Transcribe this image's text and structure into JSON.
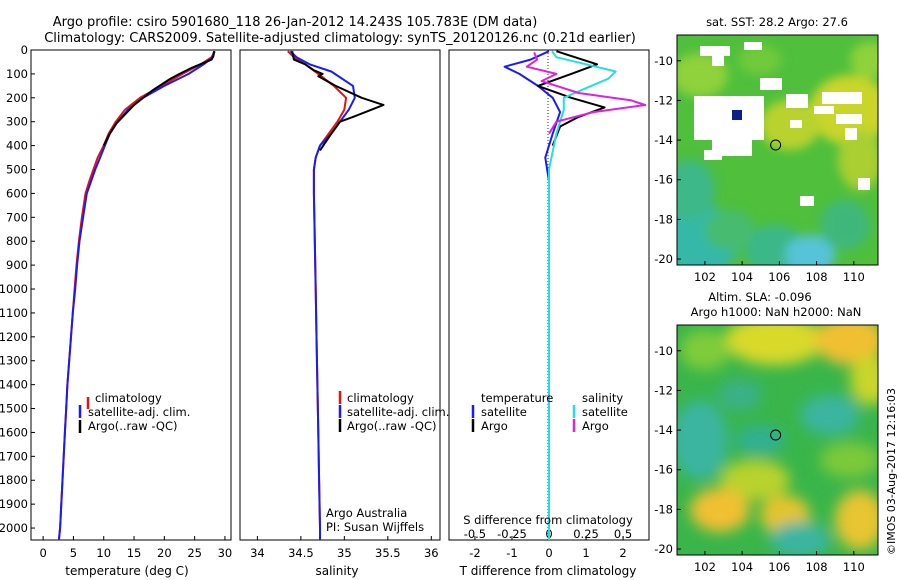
{
  "header": {
    "line1": "Argo profile: csiro 5901680_118 26-Jan-2012 14.243S 105.783E (DM data)",
    "line2": "Climatology: CARS2009. Satellite-adjusted climatology: synTS_20120126.nc (0.21d earlier)"
  },
  "colors": {
    "climatology": "#e81010",
    "satellite": "#1a1aff",
    "argo": "#000000",
    "salinity_satellite": "#22e0e0",
    "salinity_argo": "#e020e0"
  },
  "chart_data": [
    {
      "id": "temperature",
      "type": "line",
      "xlabel": "temperature (deg C)",
      "ylabel": "",
      "xlim": [
        -2,
        31
      ],
      "ylim": [
        2050,
        0
      ],
      "xticks": [
        0,
        5,
        10,
        15,
        20,
        25,
        30
      ],
      "yticks": [
        0,
        100,
        200,
        300,
        400,
        500,
        600,
        700,
        800,
        900,
        1000,
        1100,
        1200,
        1300,
        1400,
        1500,
        1600,
        1700,
        1800,
        1900,
        2000
      ],
      "legend": [
        "climatology",
        "satellite-adj. clim.",
        "Argo(..raw -QC)"
      ],
      "series": [
        {
          "name": "climatology",
          "points": [
            [
              28.3,
              5
            ],
            [
              27.8,
              30
            ],
            [
              26,
              60
            ],
            [
              23,
              100
            ],
            [
              19.5,
              150
            ],
            [
              16,
              200
            ],
            [
              13.5,
              250
            ],
            [
              12,
              300
            ],
            [
              10.8,
              350
            ],
            [
              10,
              400
            ],
            [
              9,
              450
            ],
            [
              8.3,
              500
            ],
            [
              7.6,
              550
            ],
            [
              7,
              600
            ],
            [
              6.4,
              700
            ],
            [
              5.9,
              800
            ],
            [
              5.5,
              900
            ],
            [
              5.2,
              1000
            ],
            [
              4.9,
              1100
            ],
            [
              4.6,
              1200
            ],
            [
              4.3,
              1300
            ],
            [
              4,
              1400
            ],
            [
              3.8,
              1500
            ],
            [
              3.6,
              1600
            ],
            [
              3.4,
              1700
            ],
            [
              3.2,
              1800
            ],
            [
              3,
              1900
            ],
            [
              2.8,
              2000
            ],
            [
              2.6,
              2050
            ]
          ]
        },
        {
          "name": "satellite-adj. clim.",
          "points": [
            [
              28.3,
              5
            ],
            [
              28,
              30
            ],
            [
              26.5,
              60
            ],
            [
              24,
              100
            ],
            [
              20,
              150
            ],
            [
              16.5,
              200
            ],
            [
              14,
              250
            ],
            [
              12.3,
              300
            ],
            [
              11,
              350
            ],
            [
              10.2,
              400
            ],
            [
              9.4,
              450
            ],
            [
              8.6,
              500
            ],
            [
              7.9,
              550
            ],
            [
              7.2,
              600
            ],
            [
              6.6,
              700
            ],
            [
              6,
              800
            ],
            [
              5.6,
              900
            ],
            [
              5.3,
              1000
            ],
            [
              4.9,
              1100
            ],
            [
              4.6,
              1200
            ],
            [
              4.3,
              1300
            ],
            [
              4,
              1400
            ],
            [
              3.8,
              1500
            ],
            [
              3.6,
              1600
            ],
            [
              3.4,
              1700
            ],
            [
              3.2,
              1800
            ],
            [
              3,
              1900
            ],
            [
              2.8,
              2000
            ],
            [
              2.6,
              2050
            ]
          ]
        },
        {
          "name": "Argo(..raw -QC)",
          "points": [
            [
              28.2,
              5
            ],
            [
              28.1,
              25
            ],
            [
              27.8,
              40
            ],
            [
              24.5,
              75
            ],
            [
              22.5,
              100
            ],
            [
              21,
              120
            ],
            [
              18,
              170
            ],
            [
              15,
              230
            ],
            [
              13.5,
              270
            ],
            [
              12,
              310
            ],
            [
              11,
              350
            ],
            [
              10,
              400
            ]
          ]
        }
      ]
    },
    {
      "id": "salinity",
      "type": "line",
      "xlabel": "salinity",
      "ylabel": "",
      "xlim": [
        33.8,
        36.1
      ],
      "ylim": [
        2050,
        0
      ],
      "xticks": [
        34,
        34.5,
        35,
        35.5,
        36
      ],
      "legend": [
        "climatology",
        "satellite-adj. clim.",
        "Argo(..raw -QC)"
      ],
      "annotation": [
        "Argo Australia",
        "PI: Susan Wijffels"
      ],
      "series": [
        {
          "name": "climatology",
          "points": [
            [
              34.35,
              5
            ],
            [
              34.42,
              30
            ],
            [
              34.55,
              60
            ],
            [
              34.7,
              100
            ],
            [
              34.88,
              150
            ],
            [
              35.02,
              200
            ],
            [
              35.0,
              250
            ],
            [
              34.92,
              300
            ],
            [
              34.82,
              350
            ],
            [
              34.72,
              400
            ],
            [
              34.67,
              450
            ],
            [
              34.65,
              500
            ],
            [
              34.65,
              600
            ],
            [
              34.66,
              800
            ],
            [
              34.67,
              1000
            ],
            [
              34.68,
              1200
            ],
            [
              34.69,
              1400
            ],
            [
              34.7,
              1600
            ],
            [
              34.71,
              1800
            ],
            [
              34.72,
              2000
            ],
            [
              34.72,
              2050
            ]
          ]
        },
        {
          "name": "satellite-adj. clim.",
          "points": [
            [
              34.38,
              5
            ],
            [
              34.45,
              30
            ],
            [
              34.6,
              60
            ],
            [
              34.85,
              90
            ],
            [
              35.1,
              150
            ],
            [
              35.12,
              200
            ],
            [
              35.05,
              250
            ],
            [
              34.95,
              300
            ],
            [
              34.85,
              350
            ],
            [
              34.72,
              400
            ],
            [
              34.67,
              450
            ],
            [
              34.65,
              500
            ],
            [
              34.65,
              600
            ],
            [
              34.66,
              800
            ],
            [
              34.67,
              1000
            ],
            [
              34.68,
              1200
            ],
            [
              34.69,
              1400
            ],
            [
              34.7,
              1600
            ],
            [
              34.71,
              1800
            ],
            [
              34.72,
              2000
            ],
            [
              34.72,
              2050
            ]
          ]
        },
        {
          "name": "Argo(..raw -QC)",
          "points": [
            [
              34.4,
              5
            ],
            [
              34.42,
              40
            ],
            [
              34.55,
              60
            ],
            [
              34.65,
              85
            ],
            [
              34.75,
              100
            ],
            [
              34.7,
              110
            ],
            [
              34.9,
              150
            ],
            [
              35.2,
              200
            ],
            [
              35.45,
              230
            ],
            [
              35.1,
              280
            ],
            [
              34.95,
              300
            ],
            [
              34.85,
              350
            ],
            [
              34.72,
              420
            ]
          ]
        }
      ]
    },
    {
      "id": "difference",
      "type": "line",
      "xlabel": "T difference from climatology",
      "xlabel_top": "S difference from climatology",
      "ylabel": "",
      "xlim": [
        -2.7,
        2.7
      ],
      "ylim": [
        2050,
        0
      ],
      "xticks": [
        -2,
        -1,
        0,
        1,
        2
      ],
      "xticks_top": [
        "-0.5",
        "-0.25",
        "0",
        "0.25",
        "0.5"
      ],
      "legend_headers": [
        "temperature",
        "salinity"
      ],
      "legend": [
        "satellite",
        "Argo",
        "satellite",
        "Argo"
      ],
      "series": [
        {
          "name": "satellite",
          "variable": "temperature",
          "points": [
            [
              0,
              5
            ],
            [
              -0.5,
              40
            ],
            [
              -1.2,
              70
            ],
            [
              -0.8,
              100
            ],
            [
              -0.3,
              150
            ],
            [
              0.1,
              200
            ],
            [
              0.3,
              260
            ],
            [
              0.1,
              350
            ],
            [
              -0.1,
              450
            ],
            [
              0,
              550
            ],
            [
              0,
              700
            ],
            [
              0,
              1000
            ],
            [
              0,
              1500
            ],
            [
              0,
              2050
            ]
          ]
        },
        {
          "name": "Argo",
          "variable": "temperature",
          "points": [
            [
              0.2,
              5
            ],
            [
              0.5,
              20
            ],
            [
              1.3,
              60
            ],
            [
              0.6,
              100
            ],
            [
              -0.3,
              150
            ],
            [
              0.6,
              200
            ],
            [
              1.5,
              240
            ],
            [
              0.8,
              280
            ],
            [
              0.3,
              320
            ],
            [
              0.1,
              400
            ]
          ]
        },
        {
          "name": "satellite",
          "variable": "salinity",
          "points": [
            [
              0.02,
              5
            ],
            [
              0.05,
              30
            ],
            [
              0.25,
              60
            ],
            [
              0.45,
              90
            ],
            [
              0.4,
              120
            ],
            [
              0.25,
              160
            ],
            [
              0.1,
              200
            ],
            [
              0.1,
              250
            ],
            [
              0.05,
              350
            ],
            [
              0,
              500
            ],
            [
              0,
              1000
            ],
            [
              0,
              2050
            ]
          ]
        },
        {
          "name": "Argo",
          "variable": "salinity",
          "points": [
            [
              -0.1,
              10
            ],
            [
              -0.08,
              40
            ],
            [
              -0.15,
              70
            ],
            [
              0.05,
              100
            ],
            [
              -0.05,
              130
            ],
            [
              0.2,
              180
            ],
            [
              0.55,
              210
            ],
            [
              0.65,
              230
            ],
            [
              0.3,
              260
            ],
            [
              0.05,
              300
            ],
            [
              0,
              350
            ]
          ]
        }
      ]
    },
    {
      "id": "sst_map",
      "type": "heatmap",
      "title": "sat. SST: 28.2 Argo: 27.6",
      "xlim": [
        100.5,
        111.3
      ],
      "ylim": [
        -20.3,
        -8.7
      ],
      "xticks": [
        102,
        104,
        106,
        108,
        110
      ],
      "yticks": [
        -10,
        -12,
        -14,
        -16,
        -18,
        -20
      ],
      "argo_position": [
        105.8,
        -14.25
      ]
    },
    {
      "id": "sla_map",
      "type": "heatmap",
      "title": "Altim. SLA: -0.096",
      "subtitle": "Argo h1000: NaN h2000: NaN",
      "xlim": [
        100.5,
        111.3
      ],
      "ylim": [
        -20.3,
        -8.7
      ],
      "xticks": [
        102,
        104,
        106,
        108,
        110
      ],
      "yticks": [
        -10,
        -12,
        -14,
        -16,
        -18,
        -20
      ],
      "argo_position": [
        105.8,
        -14.25
      ]
    }
  ],
  "credit": "©IMOS 03-Aug-2017 12:16:03"
}
